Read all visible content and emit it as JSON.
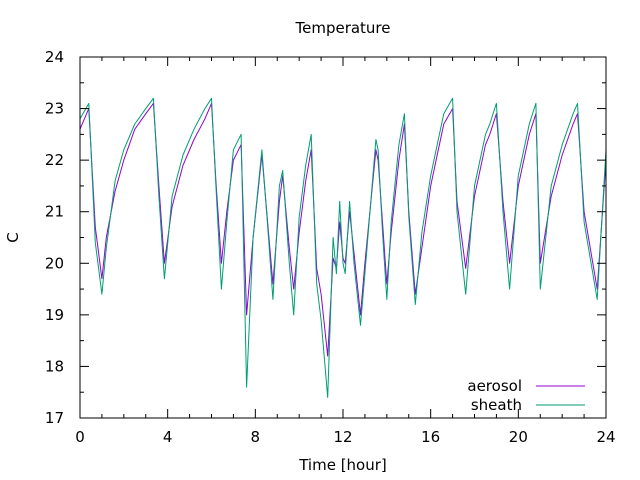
{
  "chart_data": {
    "type": "line",
    "title": "Temperature",
    "xlabel": "Time [hour]",
    "ylabel": "C",
    "xlim": [
      0,
      24
    ],
    "ylim": [
      17,
      24
    ],
    "xticks": [
      0,
      4,
      8,
      12,
      16,
      20,
      24
    ],
    "yticks": [
      17,
      18,
      19,
      20,
      21,
      22,
      23,
      24
    ],
    "grid": false,
    "legend_position": "bottom-right",
    "series": [
      {
        "name": "aerosol",
        "color": "#9400d3",
        "x": [
          0,
          0.4,
          0.7,
          1.0,
          1.2,
          1.6,
          2.0,
          2.5,
          3.0,
          3.35,
          3.6,
          3.85,
          4.2,
          4.7,
          5.2,
          5.7,
          6.0,
          6.2,
          6.45,
          6.7,
          7.0,
          7.35,
          7.6,
          7.9,
          8.3,
          8.6,
          8.8,
          9.1,
          9.25,
          9.55,
          9.75,
          10.0,
          10.3,
          10.55,
          10.8,
          11.0,
          11.3,
          11.55,
          11.7,
          11.85,
          12.0,
          12.1,
          12.3,
          12.5,
          12.8,
          13.0,
          13.5,
          13.6,
          13.8,
          14.0,
          14.2,
          14.55,
          14.8,
          15.0,
          15.3,
          15.6,
          16.0,
          16.3,
          16.6,
          17.0,
          17.2,
          17.6,
          18.0,
          18.5,
          18.7,
          19.0,
          19.3,
          19.6,
          20.0,
          20.5,
          20.8,
          21.0,
          21.5,
          22.0,
          22.5,
          22.7,
          23.0,
          23.6,
          24.0
        ],
        "values": [
          22.6,
          23.0,
          20.7,
          19.7,
          20.5,
          21.4,
          22.0,
          22.6,
          22.9,
          23.1,
          21.5,
          20.0,
          21.1,
          21.9,
          22.4,
          22.8,
          23.1,
          21.6,
          20.0,
          21.0,
          22.0,
          22.3,
          19.0,
          20.5,
          22.1,
          20.6,
          19.6,
          21.2,
          21.7,
          20.3,
          19.5,
          20.6,
          21.6,
          22.2,
          19.9,
          19.4,
          18.2,
          20.1,
          19.9,
          20.8,
          20.1,
          20.0,
          21.0,
          20.2,
          19.0,
          20.0,
          22.2,
          22.0,
          20.8,
          19.6,
          20.6,
          22.0,
          22.7,
          21.0,
          19.4,
          20.3,
          21.5,
          22.1,
          22.7,
          23.0,
          21.2,
          19.9,
          21.3,
          22.3,
          22.5,
          22.9,
          21.2,
          20.0,
          21.5,
          22.5,
          22.9,
          20.0,
          21.3,
          22.1,
          22.7,
          22.9,
          21.0,
          19.5,
          22.0
        ]
      },
      {
        "name": "sheath",
        "color": "#009e73",
        "x": [
          0,
          0.4,
          0.7,
          1.0,
          1.2,
          1.6,
          2.0,
          2.5,
          3.0,
          3.35,
          3.6,
          3.85,
          4.2,
          4.7,
          5.2,
          5.7,
          6.0,
          6.2,
          6.45,
          6.7,
          7.0,
          7.35,
          7.6,
          7.9,
          8.3,
          8.6,
          8.8,
          9.1,
          9.25,
          9.55,
          9.75,
          10.0,
          10.3,
          10.55,
          10.8,
          11.0,
          11.3,
          11.55,
          11.7,
          11.85,
          12.0,
          12.1,
          12.3,
          12.5,
          12.8,
          13.0,
          13.5,
          13.6,
          13.8,
          14.0,
          14.2,
          14.55,
          14.8,
          15.0,
          15.3,
          15.6,
          16.0,
          16.3,
          16.6,
          17.0,
          17.2,
          17.6,
          18.0,
          18.5,
          18.7,
          19.0,
          19.3,
          19.6,
          20.0,
          20.5,
          20.8,
          21.0,
          21.5,
          22.0,
          22.5,
          22.7,
          23.0,
          23.6,
          24.0
        ],
        "values": [
          22.8,
          23.1,
          20.4,
          19.4,
          20.3,
          21.6,
          22.2,
          22.7,
          23.0,
          23.2,
          21.3,
          19.7,
          21.3,
          22.1,
          22.6,
          23.0,
          23.2,
          21.5,
          19.5,
          20.8,
          22.2,
          22.5,
          17.6,
          20.5,
          22.2,
          20.5,
          19.3,
          21.5,
          21.8,
          20.0,
          19.0,
          20.9,
          21.9,
          22.5,
          19.6,
          18.9,
          17.4,
          20.5,
          19.8,
          21.2,
          20.0,
          19.8,
          21.2,
          20.0,
          18.8,
          19.8,
          22.4,
          22.2,
          20.6,
          19.3,
          20.8,
          22.3,
          22.9,
          20.9,
          19.2,
          20.6,
          21.7,
          22.3,
          22.9,
          23.2,
          21.0,
          19.4,
          21.5,
          22.5,
          22.7,
          23.1,
          21.0,
          19.5,
          21.7,
          22.7,
          23.1,
          19.5,
          21.5,
          22.3,
          22.9,
          23.1,
          20.8,
          19.3,
          22.2
        ]
      }
    ]
  }
}
